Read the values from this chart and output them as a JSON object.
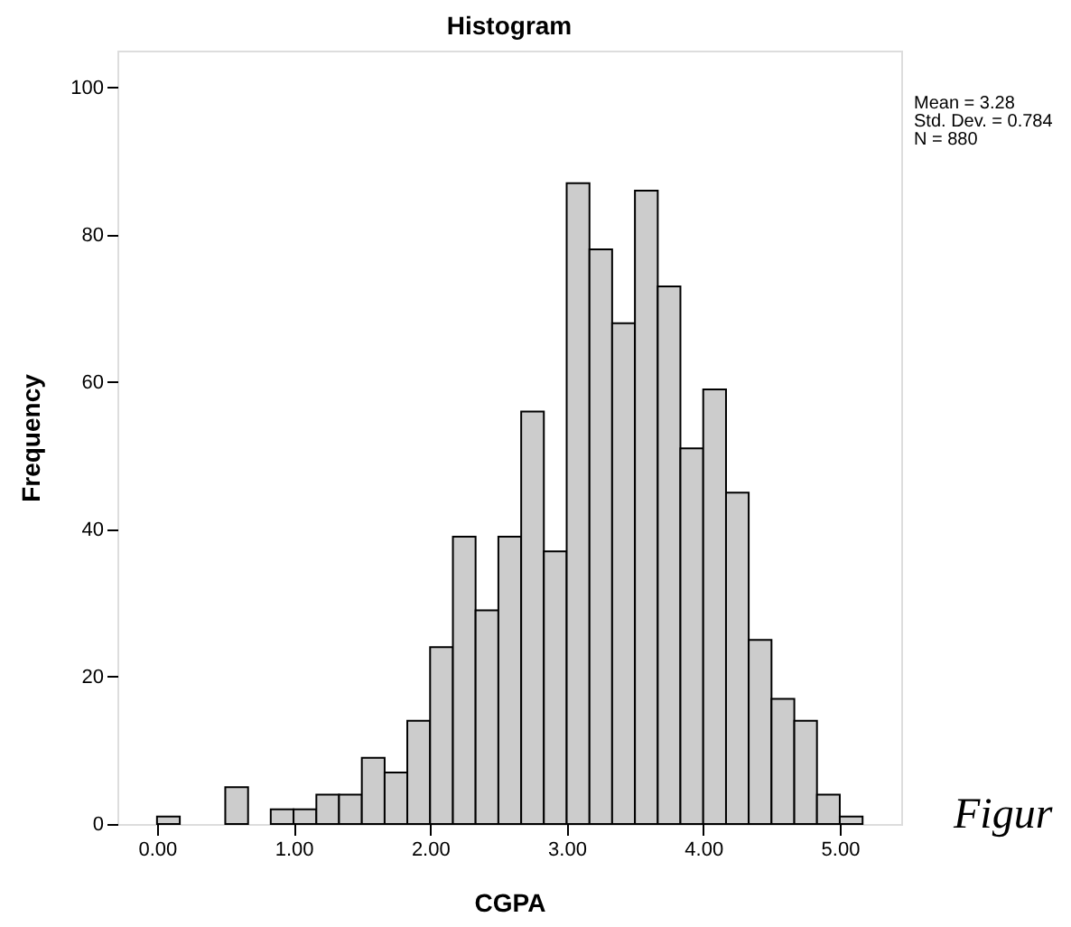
{
  "chart_data": {
    "type": "histogram",
    "title": "Histogram",
    "xlabel": "CGPA",
    "ylabel": "Frequency",
    "bins": [
      0,
      0.167,
      0.333,
      0.5,
      0.667,
      0.833,
      1,
      1.167,
      1.333,
      1.5,
      1.667,
      1.833,
      2,
      2.167,
      2.333,
      2.5,
      2.667,
      2.833,
      3,
      3.167,
      3.333,
      3.5,
      3.667,
      3.833,
      4,
      4.167,
      4.333,
      4.5,
      4.667,
      4.833,
      5,
      5.167
    ],
    "values": [
      1,
      0,
      0,
      5,
      0,
      2,
      2,
      4,
      4,
      9,
      7,
      14,
      24,
      39,
      29,
      39,
      56,
      37,
      87,
      78,
      68,
      86,
      73,
      51,
      59,
      45,
      25,
      17,
      14,
      4,
      1
    ],
    "color": "#cccccc",
    "xlim": [
      -0.29,
      5.45
    ],
    "ylim": [
      0,
      105
    ],
    "xticks": [
      {
        "value": 0,
        "label": "0.00"
      },
      {
        "value": 1,
        "label": "1.00"
      },
      {
        "value": 2,
        "label": "2.00"
      },
      {
        "value": 3,
        "label": "3.00"
      },
      {
        "value": 4,
        "label": "4.00"
      },
      {
        "value": 5,
        "label": "5.00"
      }
    ],
    "yticks": [
      0,
      20,
      40,
      60,
      80,
      100
    ],
    "grid": false,
    "annotations": [
      "Mean = 3.28",
      "Std. Dev. = 0.784",
      "N = 880",
      "Figur"
    ]
  }
}
